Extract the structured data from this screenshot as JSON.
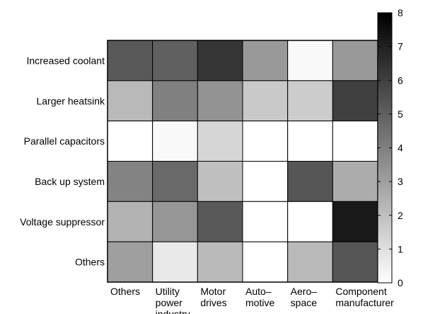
{
  "chart_data": {
    "type": "heatmap",
    "title": "",
    "xlabel": "",
    "ylabel": "",
    "x_categories": [
      [
        "Others"
      ],
      [
        "Utility",
        "power",
        "industry"
      ],
      [
        "Motor",
        "drives"
      ],
      [
        "Auto–",
        "motive"
      ],
      [
        "Aero–",
        "space"
      ],
      [
        "Component",
        "manufacturer"
      ]
    ],
    "y_categories": [
      "Increased coolant",
      "Larger heatsink",
      "Parallel capacitors",
      "Back up system",
      "Voltage suppressor",
      "Others"
    ],
    "values": [
      [
        5.2,
        5.0,
        6.3,
        3.2,
        0.2,
        3.2
      ],
      [
        2.2,
        4.0,
        3.4,
        1.7,
        1.6,
        6.0
      ],
      [
        0.0,
        0.2,
        1.3,
        0.0,
        0.0,
        0.0
      ],
      [
        3.9,
        4.7,
        2.0,
        0.0,
        5.3,
        2.6
      ],
      [
        2.4,
        3.3,
        5.2,
        0.0,
        0.0,
        7.2
      ],
      [
        3.0,
        0.7,
        2.2,
        0.0,
        2.2,
        5.3
      ]
    ],
    "colorbar": {
      "range": [
        0,
        8
      ],
      "ticks": [
        "0",
        "1",
        "2",
        "3",
        "4",
        "5",
        "6",
        "7",
        "8"
      ],
      "colormap": "gray-reversed",
      "low_color": "#ffffff",
      "high_color": "#000000"
    }
  }
}
